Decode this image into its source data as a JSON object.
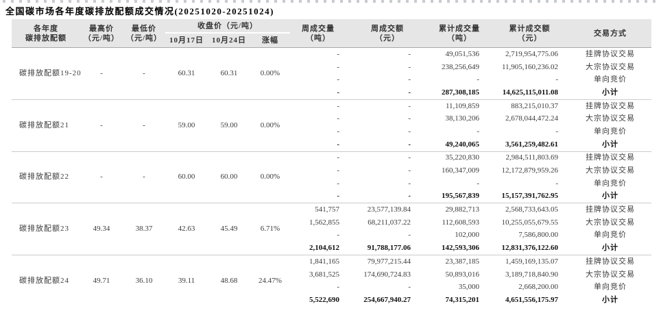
{
  "page": {
    "title": "全国碳市场各年度碳排放配额成交情况(20251020-20251024)"
  },
  "colors": {
    "header_bg": "#e6e6e6",
    "header_rule": "#a8a8a8",
    "group_rule": "#cbcbcb",
    "text": "#3a3a3a",
    "bold_text": "#111111"
  },
  "table": {
    "header": {
      "product_line1": "各年度",
      "product_line2": "碳排放配额",
      "high_line1": "最高价",
      "high_line2": "（元/吨）",
      "low_line1": "最低价",
      "low_line2": "（元/吨）",
      "close_group": "收盘价（元/吨）",
      "close_d1": "10月17日",
      "close_d2": "10月24日",
      "close_change": "涨幅",
      "week_volume_line1": "周成交量",
      "week_volume_line2": "（吨）",
      "week_amount_line1": "周成交额",
      "week_amount_line2": "（元）",
      "cum_volume_line1": "累计成交量",
      "cum_volume_line2": "（吨）",
      "cum_amount_line1": "累计成交额",
      "cum_amount_line2": "（元）",
      "trade_method": "交易方式"
    },
    "groups": [
      {
        "name": "碳排放配额19-20",
        "high": "-",
        "low": "-",
        "close_oct17": "60.31",
        "close_oct24": "60.31",
        "change": "0.00%",
        "rows": [
          {
            "method": "挂牌协议交易",
            "week_volume": "-",
            "week_amount": "-",
            "cum_volume": "49,051,536",
            "cum_amount": "2,719,954,775.06"
          },
          {
            "method": "大宗协议交易",
            "week_volume": "-",
            "week_amount": "-",
            "cum_volume": "238,256,649",
            "cum_amount": "11,905,160,236.02"
          },
          {
            "method": "单向竞价",
            "week_volume": "-",
            "week_amount": "-",
            "cum_volume": "-",
            "cum_amount": "-"
          },
          {
            "method": "小计",
            "week_volume": "-",
            "week_amount": "-",
            "cum_volume": "287,308,185",
            "cum_amount": "14,625,115,011.08"
          }
        ]
      },
      {
        "name": "碳排放配额21",
        "high": "-",
        "low": "-",
        "close_oct17": "59.00",
        "close_oct24": "59.00",
        "change": "0.00%",
        "rows": [
          {
            "method": "挂牌协议交易",
            "week_volume": "-",
            "week_amount": "-",
            "cum_volume": "11,109,859",
            "cum_amount": "883,215,010.37"
          },
          {
            "method": "大宗协议交易",
            "week_volume": "-",
            "week_amount": "-",
            "cum_volume": "38,130,206",
            "cum_amount": "2,678,044,472.24"
          },
          {
            "method": "单向竞价",
            "week_volume": "-",
            "week_amount": "-",
            "cum_volume": "-",
            "cum_amount": "-"
          },
          {
            "method": "小计",
            "week_volume": "-",
            "week_amount": "-",
            "cum_volume": "49,240,065",
            "cum_amount": "3,561,259,482.61"
          }
        ]
      },
      {
        "name": "碳排放配额22",
        "high": "-",
        "low": "-",
        "close_oct17": "60.00",
        "close_oct24": "60.00",
        "change": "0.00%",
        "rows": [
          {
            "method": "挂牌协议交易",
            "week_volume": "-",
            "week_amount": "-",
            "cum_volume": "35,220,830",
            "cum_amount": "2,984,511,803.69"
          },
          {
            "method": "大宗协议交易",
            "week_volume": "-",
            "week_amount": "-",
            "cum_volume": "160,347,009",
            "cum_amount": "12,172,879,959.26"
          },
          {
            "method": "单向竞价",
            "week_volume": "-",
            "week_amount": "-",
            "cum_volume": "-",
            "cum_amount": "-"
          },
          {
            "method": "小计",
            "week_volume": "-",
            "week_amount": "-",
            "cum_volume": "195,567,839",
            "cum_amount": "15,157,391,762.95"
          }
        ]
      },
      {
        "name": "碳排放配额23",
        "high": "49.34",
        "low": "38.37",
        "close_oct17": "42.63",
        "close_oct24": "45.49",
        "change": "6.71%",
        "rows": [
          {
            "method": "挂牌协议交易",
            "week_volume": "541,757",
            "week_amount": "23,577,139.84",
            "cum_volume": "29,882,713",
            "cum_amount": "2,568,733,643.05"
          },
          {
            "method": "大宗协议交易",
            "week_volume": "1,562,855",
            "week_amount": "68,211,037.22",
            "cum_volume": "112,608,593",
            "cum_amount": "10,255,055,679.55"
          },
          {
            "method": "单向竞价",
            "week_volume": "-",
            "week_amount": "-",
            "cum_volume": "102,000",
            "cum_amount": "7,586,800.00"
          },
          {
            "method": "小计",
            "week_volume": "2,104,612",
            "week_amount": "91,788,177.06",
            "cum_volume": "142,593,306",
            "cum_amount": "12,831,376,122.60"
          }
        ]
      },
      {
        "name": "碳排放配额24",
        "high": "49.71",
        "low": "36.10",
        "close_oct17": "39.11",
        "close_oct24": "48.68",
        "change": "24.47%",
        "rows": [
          {
            "method": "挂牌协议交易",
            "week_volume": "1,841,165",
            "week_amount": "79,977,215.44",
            "cum_volume": "23,387,185",
            "cum_amount": "1,459,169,135.07"
          },
          {
            "method": "大宗协议交易",
            "week_volume": "3,681,525",
            "week_amount": "174,690,724.83",
            "cum_volume": "50,893,016",
            "cum_amount": "3,189,718,840.90"
          },
          {
            "method": "单向竞价",
            "week_volume": "-",
            "week_amount": "-",
            "cum_volume": "35,000",
            "cum_amount": "2,668,200.00"
          },
          {
            "method": "小计",
            "week_volume": "5,522,690",
            "week_amount": "254,667,940.27",
            "cum_volume": "74,315,201",
            "cum_amount": "4,651,556,175.97"
          }
        ]
      }
    ]
  }
}
